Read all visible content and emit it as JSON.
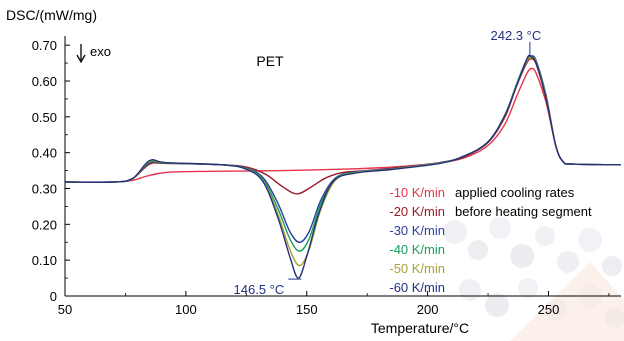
{
  "chart_data": {
    "type": "line",
    "title": "PET",
    "ylabel": "DSC/(mW/mg)",
    "xlabel": "Temperature/°C",
    "xlim": [
      50,
      280
    ],
    "ylim": [
      0,
      0.72
    ],
    "xticks": [
      50,
      100,
      150,
      200,
      250
    ],
    "yticks": [
      0,
      0.1,
      0.2,
      0.3,
      0.4,
      0.5,
      0.6,
      0.7
    ],
    "ytick_labels": [
      "0",
      "0.10",
      "0.20",
      "0.30",
      "0.40",
      "0.50",
      "0.60",
      "0.70"
    ],
    "grid": false,
    "exo_label": "exo",
    "legend_note": [
      "applied cooling rates",
      "before heating segment"
    ],
    "annotations": [
      {
        "id": "melt-peak",
        "text": "242.3 °C",
        "x": 242.3,
        "y": 0.67
      },
      {
        "id": "cryst-peak",
        "text": "146.5 °C",
        "x": 146.5,
        "y": 0.05
      }
    ],
    "series": [
      {
        "name": "-10 K/min",
        "color": "#e8344a",
        "points": [
          [
            50,
            0.318
          ],
          [
            70,
            0.318
          ],
          [
            78,
            0.323
          ],
          [
            84,
            0.335
          ],
          [
            92,
            0.345
          ],
          [
            110,
            0.348
          ],
          [
            140,
            0.35
          ],
          [
            170,
            0.355
          ],
          [
            190,
            0.362
          ],
          [
            205,
            0.372
          ],
          [
            215,
            0.385
          ],
          [
            225,
            0.42
          ],
          [
            232,
            0.48
          ],
          [
            237,
            0.56
          ],
          [
            241,
            0.62
          ],
          [
            243,
            0.635
          ],
          [
            245,
            0.62
          ],
          [
            249,
            0.54
          ],
          [
            253,
            0.42
          ],
          [
            256,
            0.375
          ],
          [
            260,
            0.368
          ],
          [
            280,
            0.366
          ]
        ]
      },
      {
        "name": "-20 K/min",
        "color": "#9b1b28",
        "points": [
          [
            50,
            0.318
          ],
          [
            70,
            0.318
          ],
          [
            78,
            0.328
          ],
          [
            85,
            0.368
          ],
          [
            92,
            0.37
          ],
          [
            115,
            0.366
          ],
          [
            125,
            0.36
          ],
          [
            133,
            0.34
          ],
          [
            140,
            0.305
          ],
          [
            146,
            0.285
          ],
          [
            152,
            0.305
          ],
          [
            158,
            0.33
          ],
          [
            165,
            0.345
          ],
          [
            175,
            0.35
          ],
          [
            190,
            0.36
          ],
          [
            205,
            0.372
          ],
          [
            215,
            0.388
          ],
          [
            225,
            0.428
          ],
          [
            232,
            0.5
          ],
          [
            237,
            0.59
          ],
          [
            241,
            0.65
          ],
          [
            243,
            0.662
          ],
          [
            245,
            0.645
          ],
          [
            249,
            0.55
          ],
          [
            253,
            0.42
          ],
          [
            256,
            0.375
          ],
          [
            260,
            0.368
          ],
          [
            280,
            0.366
          ]
        ]
      },
      {
        "name": "-30 K/min",
        "color": "#2c3f9e",
        "points": [
          [
            50,
            0.318
          ],
          [
            70,
            0.318
          ],
          [
            78,
            0.328
          ],
          [
            85,
            0.372
          ],
          [
            92,
            0.371
          ],
          [
            115,
            0.366
          ],
          [
            125,
            0.357
          ],
          [
            132,
            0.33
          ],
          [
            138,
            0.26
          ],
          [
            143,
            0.18
          ],
          [
            147,
            0.15
          ],
          [
            151,
            0.18
          ],
          [
            156,
            0.27
          ],
          [
            162,
            0.33
          ],
          [
            170,
            0.346
          ],
          [
            185,
            0.355
          ],
          [
            205,
            0.372
          ],
          [
            215,
            0.39
          ],
          [
            225,
            0.43
          ],
          [
            232,
            0.505
          ],
          [
            237,
            0.595
          ],
          [
            241,
            0.66
          ],
          [
            243,
            0.67
          ],
          [
            245,
            0.655
          ],
          [
            249,
            0.56
          ],
          [
            253,
            0.42
          ],
          [
            256,
            0.375
          ],
          [
            260,
            0.368
          ],
          [
            280,
            0.366
          ]
        ]
      },
      {
        "name": "-40 K/min",
        "color": "#16a05a",
        "points": [
          [
            50,
            0.318
          ],
          [
            70,
            0.318
          ],
          [
            78,
            0.328
          ],
          [
            85,
            0.374
          ],
          [
            92,
            0.371
          ],
          [
            115,
            0.366
          ],
          [
            125,
            0.356
          ],
          [
            132,
            0.325
          ],
          [
            138,
            0.245
          ],
          [
            143,
            0.16
          ],
          [
            147,
            0.125
          ],
          [
            151,
            0.16
          ],
          [
            156,
            0.26
          ],
          [
            162,
            0.328
          ],
          [
            170,
            0.345
          ],
          [
            185,
            0.354
          ],
          [
            205,
            0.371
          ],
          [
            215,
            0.39
          ],
          [
            225,
            0.43
          ],
          [
            232,
            0.505
          ],
          [
            237,
            0.595
          ],
          [
            241,
            0.658
          ],
          [
            243,
            0.668
          ],
          [
            245,
            0.652
          ],
          [
            249,
            0.558
          ],
          [
            253,
            0.42
          ],
          [
            256,
            0.375
          ],
          [
            260,
            0.368
          ],
          [
            280,
            0.366
          ]
        ]
      },
      {
        "name": "-50 K/min",
        "color": "#a8a030",
        "points": [
          [
            50,
            0.318
          ],
          [
            70,
            0.318
          ],
          [
            78,
            0.328
          ],
          [
            85,
            0.376
          ],
          [
            92,
            0.372
          ],
          [
            115,
            0.366
          ],
          [
            125,
            0.355
          ],
          [
            132,
            0.32
          ],
          [
            138,
            0.23
          ],
          [
            143,
            0.13
          ],
          [
            147,
            0.085
          ],
          [
            151,
            0.13
          ],
          [
            156,
            0.245
          ],
          [
            162,
            0.324
          ],
          [
            170,
            0.344
          ],
          [
            185,
            0.354
          ],
          [
            205,
            0.371
          ],
          [
            215,
            0.39
          ],
          [
            225,
            0.43
          ],
          [
            232,
            0.505
          ],
          [
            237,
            0.592
          ],
          [
            241,
            0.655
          ],
          [
            243,
            0.665
          ],
          [
            245,
            0.65
          ],
          [
            249,
            0.555
          ],
          [
            253,
            0.42
          ],
          [
            256,
            0.375
          ],
          [
            260,
            0.368
          ],
          [
            280,
            0.366
          ]
        ]
      },
      {
        "name": "-60 K/min",
        "color": "#23307e",
        "points": [
          [
            50,
            0.318
          ],
          [
            70,
            0.318
          ],
          [
            78,
            0.328
          ],
          [
            85,
            0.378
          ],
          [
            92,
            0.372
          ],
          [
            115,
            0.366
          ],
          [
            125,
            0.354
          ],
          [
            132,
            0.318
          ],
          [
            138,
            0.22
          ],
          [
            143,
            0.11
          ],
          [
            146.5,
            0.05
          ],
          [
            150,
            0.11
          ],
          [
            155,
            0.23
          ],
          [
            161,
            0.32
          ],
          [
            170,
            0.343
          ],
          [
            185,
            0.353
          ],
          [
            205,
            0.37
          ],
          [
            215,
            0.39
          ],
          [
            225,
            0.43
          ],
          [
            232,
            0.505
          ],
          [
            237,
            0.59
          ],
          [
            241,
            0.66
          ],
          [
            242.3,
            0.67
          ],
          [
            245,
            0.648
          ],
          [
            249,
            0.552
          ],
          [
            253,
            0.42
          ],
          [
            256,
            0.375
          ],
          [
            260,
            0.368
          ],
          [
            280,
            0.366
          ]
        ]
      }
    ]
  }
}
